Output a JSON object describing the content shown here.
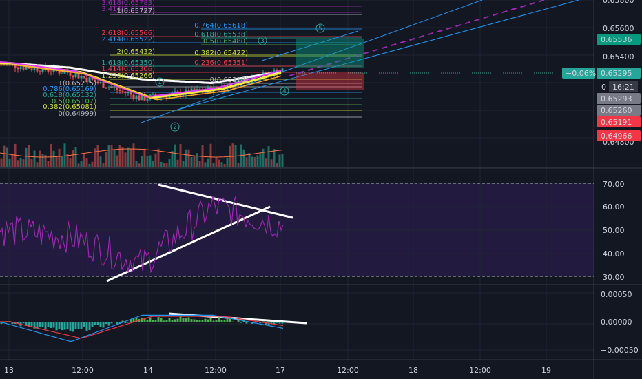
{
  "price_pane": {
    "axis_ticks": [
      "0.65800",
      "0.65600",
      "0.65400",
      "0.64800"
    ],
    "badges": [
      {
        "label": "0.65536",
        "color": "#089981"
      },
      {
        "label": "0.65295",
        "color": "#26a69a"
      },
      {
        "label": "0.65293",
        "color": "#787b86"
      },
      {
        "label": "0.65260",
        "color": "#787b86"
      },
      {
        "label": "0.65191",
        "color": "#f23645"
      },
      {
        "label": "0.64966",
        "color": "#f23645"
      }
    ],
    "change_badge": "−0.06%",
    "countdown": "16:21",
    "countdown_prefix": "0",
    "fib_levels": [
      {
        "label": "3.618(0.65783)",
        "color": "#9c27b0"
      },
      {
        "label": "3.414(0.65739)",
        "color": "#9c27b0"
      },
      {
        "label": "1(0.65727)",
        "color": "#b2b5be"
      },
      {
        "label": "2.618(0.65566)",
        "color": "#f23645"
      },
      {
        "label": "2.414(0.65522)",
        "color": "#2196f3"
      },
      {
        "label": "2(0.65432)",
        "color": "#cddc39"
      },
      {
        "label": "1.618(0.65350)",
        "color": "#26a69a"
      },
      {
        "label": "1.414(0.65306)",
        "color": "#f23645"
      },
      {
        "label": "1.236(0.65266)",
        "color": "#cddc39"
      },
      {
        "label": "1(0.65215)",
        "color": "#b2b5be"
      },
      {
        "label": "0.786(0.65169)",
        "color": "#2196f3"
      },
      {
        "label": "0.618(0.65132)",
        "color": "#26a69a"
      },
      {
        "label": "0.5(0.65107)",
        "color": "#4caf50"
      },
      {
        "label": "0.382(0.65081)",
        "color": "#cddc39"
      },
      {
        "label": "0(0.64999)",
        "color": "#b2b5be"
      }
    ],
    "fib_levels_right": [
      {
        "label": "0.764(0.65618)",
        "color": "#2196f3"
      },
      {
        "label": "0.618(0.65538)",
        "color": "#26a69a"
      },
      {
        "label": "0.5(0.65480)",
        "color": "#4caf50"
      },
      {
        "label": "0.382(0.65422)",
        "color": "#cddc39"
      },
      {
        "label": "0.236(0.65351)",
        "color": "#f23645"
      },
      {
        "label": "0(0.65318)",
        "color": "#b2b5be"
      }
    ],
    "wave_labels": [
      "1",
      "2",
      "3",
      "4",
      "5"
    ]
  },
  "rsi_pane": {
    "axis_ticks": [
      "70.00",
      "60.00",
      "50.00",
      "40.00",
      "30.00"
    ]
  },
  "macd_pane": {
    "axis_ticks": [
      "0.00050",
      "0.00000",
      "−0.00050"
    ]
  },
  "time_axis": {
    "labels": [
      "13",
      "12:00",
      "14",
      "12:00",
      "17",
      "12:00",
      "18",
      "12:00",
      "19"
    ]
  },
  "chart_data": [
    {
      "type": "line",
      "title": "",
      "ylim": [
        0.6472,
        0.6582
      ],
      "x": [
        "13",
        "12:00",
        "14",
        "12:00",
        "17"
      ],
      "series": [
        {
          "values": [
            0.6535,
            0.6528,
            0.6508,
            0.6515,
            0.653
          ]
        },
        {
          "values": [
            0.6536,
            0.6532,
            0.6523,
            0.652,
            0.6529
          ]
        }
      ]
    },
    {
      "type": "line",
      "title": "",
      "ylim": [
        27,
        73
      ],
      "x": [
        "13",
        "12:00",
        "14",
        "12:00",
        "17"
      ],
      "series": [
        {
          "values": [
            50,
            47,
            35,
            60,
            52
          ]
        }
      ]
    },
    {
      "type": "bar",
      "title": "",
      "ylim": [
        -0.0006,
        0.0006
      ],
      "x": [
        "13",
        "12:00",
        "14",
        "12:00",
        "17"
      ],
      "series": [
        {
          "values": [
            0.0,
            -0.0003,
            0.0001,
            0.0001,
            -0.0001
          ]
        }
      ]
    }
  ]
}
